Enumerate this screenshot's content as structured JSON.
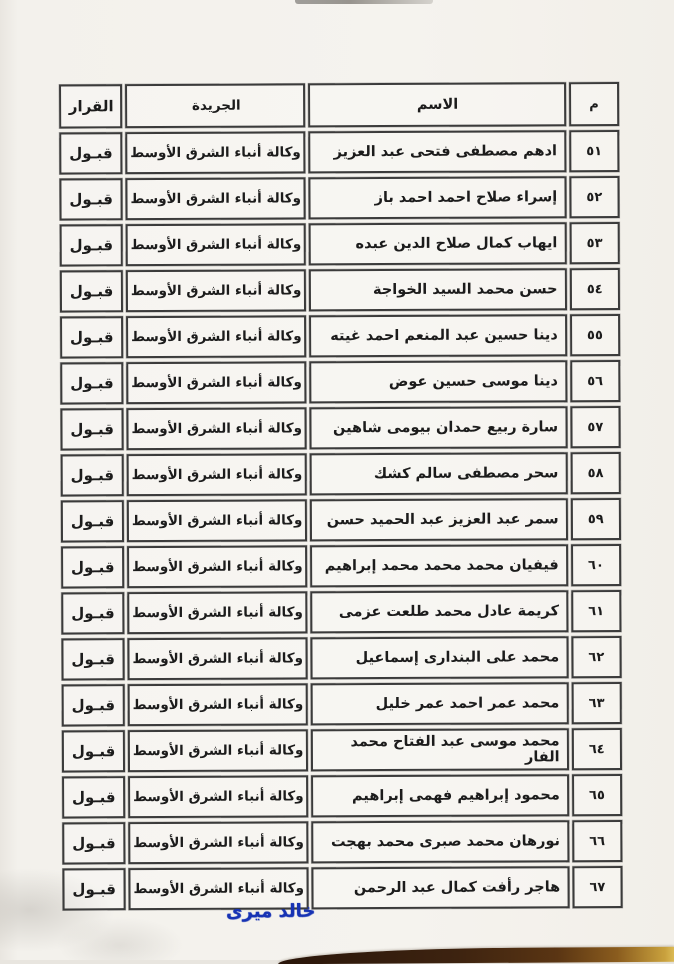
{
  "page": {
    "signature": "خالد ميرى"
  },
  "table": {
    "headers": {
      "number": "م",
      "name": "الاسم",
      "newspaper": "الجريدة",
      "decision": "القرار"
    },
    "rows": [
      {
        "number": "٥١",
        "name": "ادهم مصطفى فتحى عبد العزيز",
        "newspaper": "وكالة أنباء الشرق الأوسط",
        "decision": "قبـول"
      },
      {
        "number": "٥٢",
        "name": "إسراء صلاح احمد احمد باز",
        "newspaper": "وكالة أنباء الشرق الأوسط",
        "decision": "قبـول"
      },
      {
        "number": "٥٣",
        "name": "ايهاب كمال صلاح الدين عبده",
        "newspaper": "وكالة أنباء الشرق الأوسط",
        "decision": "قبـول"
      },
      {
        "number": "٥٤",
        "name": "حسن محمد السيد الخواجة",
        "newspaper": "وكالة أنباء الشرق الأوسط",
        "decision": "قبـول"
      },
      {
        "number": "٥٥",
        "name": "دينا حسين عبد المنعم احمد غيته",
        "newspaper": "وكالة أنباء الشرق الأوسط",
        "decision": "قبـول"
      },
      {
        "number": "٥٦",
        "name": "دينا موسى حسين عوض",
        "newspaper": "وكالة أنباء الشرق الأوسط",
        "decision": "قبـول"
      },
      {
        "number": "٥٧",
        "name": "سارة ربيع حمدان بيومى شاهين",
        "newspaper": "وكالة أنباء الشرق الأوسط",
        "decision": "قبـول"
      },
      {
        "number": "٥٨",
        "name": "سحر مصطفى سالم كشك",
        "newspaper": "وكالة أنباء الشرق الأوسط",
        "decision": "قبـول"
      },
      {
        "number": "٥٩",
        "name": "سمر عبد العزيز عبد الحميد حسن",
        "newspaper": "وكالة أنباء الشرق الأوسط",
        "decision": "قبـول"
      },
      {
        "number": "٦٠",
        "name": "فيفيان محمد محمد محمد إبراهيم",
        "newspaper": "وكالة أنباء الشرق الأوسط",
        "decision": "قبـول"
      },
      {
        "number": "٦١",
        "name": "كريمة عادل محمد طلعت عزمى",
        "newspaper": "وكالة أنباء الشرق الأوسط",
        "decision": "قبـول"
      },
      {
        "number": "٦٢",
        "name": "محمد على البندارى إسماعيل",
        "newspaper": "وكالة أنباء الشرق الأوسط",
        "decision": "قبـول"
      },
      {
        "number": "٦٣",
        "name": "محمد عمر احمد عمر خليل",
        "newspaper": "وكالة أنباء الشرق الأوسط",
        "decision": "قبـول"
      },
      {
        "number": "٦٤",
        "name": "محمد موسى عبد الفتاح محمد الفار",
        "newspaper": "وكالة أنباء الشرق الأوسط",
        "decision": "قبـول"
      },
      {
        "number": "٦٥",
        "name": "محمود إبراهيم فهمى إبراهيم",
        "newspaper": "وكالة أنباء الشرق الأوسط",
        "decision": "قبـول"
      },
      {
        "number": "٦٦",
        "name": "نورهان محمد صبرى محمد بهجت",
        "newspaper": "وكالة أنباء الشرق الأوسط",
        "decision": "قبـول"
      },
      {
        "number": "٦٧",
        "name": "هاجر رأفت كمال عبد الرحمن",
        "newspaper": "وكالة أنباء الشرق الأوسط",
        "decision": "قبـول"
      }
    ]
  }
}
